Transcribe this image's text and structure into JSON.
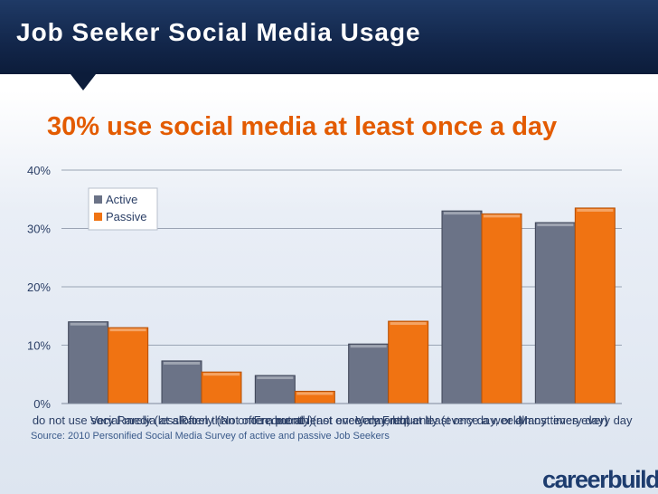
{
  "slide": {
    "title": "Job Seeker Social Media Usage",
    "headline": "30% use social media at least once a day",
    "source": "Source: 2010 Personified Social Media  Survey of active and passive Job Seekers",
    "logo": "careerbuilder"
  },
  "colors": {
    "active": "#6b7387",
    "passive": "#f07312",
    "headline": "#e35b00",
    "title_bar": "#12264a"
  },
  "chart_data": {
    "type": "bar",
    "categories": [
      "do not use social media at all",
      "Very Rarely (less often than once a month)",
      "Rarely (Not often, but at least once a month)",
      "Frequently (not every day, but at least once a week)",
      "Very Frequently (every day, or almost every day)",
      "Many times every day"
    ],
    "series": [
      {
        "name": "Active",
        "values": [
          14,
          7.3,
          4.8,
          10.2,
          33,
          31
        ]
      },
      {
        "name": "Passive",
        "values": [
          13,
          5.4,
          2.1,
          14.1,
          32.5,
          33.5
        ]
      }
    ],
    "yticks": [
      "0%",
      "10%",
      "20%",
      "30%",
      "40%"
    ],
    "ylim": [
      0,
      40
    ],
    "grid": true,
    "legend": "top-left"
  }
}
